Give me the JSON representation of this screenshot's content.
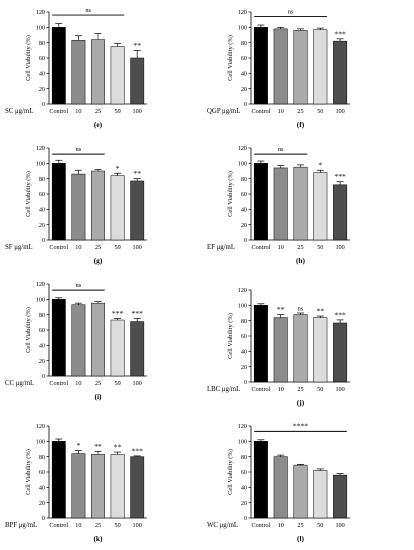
{
  "figure": {
    "colors": {
      "Control": "#000000",
      "10": "#8c8c8c",
      "25": "#ababab",
      "50": "#dcdcdc",
      "100": "#4e4e4e"
    }
  },
  "chart_data": [
    {
      "type": "bar",
      "panel": "(e)",
      "condition": "SC μg/mL",
      "ylabel": "Cell Viability (%)",
      "ylim": [
        0,
        120
      ],
      "yticks": [
        0,
        20,
        40,
        60,
        80,
        100,
        120
      ],
      "categories": [
        "Control",
        "10",
        "25",
        "50",
        "100"
      ],
      "values": [
        100,
        83,
        84,
        75,
        60
      ],
      "errors": [
        5,
        6,
        8,
        4,
        10
      ],
      "significance": [
        "",
        "",
        "",
        "",
        "**"
      ],
      "bracket": {
        "label": "ns",
        "from": 0,
        "to": 3,
        "y": 116
      }
    },
    {
      "type": "bar",
      "panel": "(f)",
      "condition": "QGP μg/mL",
      "ylabel": "Cell Viability (%)",
      "ylim": [
        0,
        120
      ],
      "yticks": [
        0,
        20,
        40,
        60,
        80,
        100,
        120
      ],
      "categories": [
        "Control",
        "10",
        "25",
        "50",
        "100"
      ],
      "values": [
        100,
        98,
        96,
        97,
        82
      ],
      "errors": [
        3,
        2,
        2,
        2,
        3
      ],
      "significance": [
        "",
        "",
        "",
        "",
        "***"
      ],
      "bracket": {
        "label": "ns",
        "from": 0,
        "to": 3,
        "y": 114
      }
    },
    {
      "type": "bar",
      "panel": "(g)",
      "condition": "SF μg/mL",
      "ylabel": "Cell Viability (%)",
      "ylim": [
        0,
        120
      ],
      "yticks": [
        0,
        20,
        40,
        60,
        80,
        100,
        120
      ],
      "categories": [
        "Control",
        "10",
        "25",
        "50",
        "100"
      ],
      "values": [
        100,
        86,
        90,
        84,
        77
      ],
      "errors": [
        4,
        5,
        2,
        3,
        3
      ],
      "significance": [
        "",
        "",
        "",
        "*",
        "**"
      ],
      "bracket": {
        "label": "ns",
        "from": 0,
        "to": 2,
        "y": 112
      }
    },
    {
      "type": "bar",
      "panel": "(h)",
      "condition": "EF μg/mL",
      "ylabel": "Cell Viability (%)",
      "ylim": [
        0,
        120
      ],
      "yticks": [
        0,
        20,
        40,
        60,
        80,
        100,
        120
      ],
      "categories": [
        "Control",
        "10",
        "25",
        "50",
        "100"
      ],
      "values": [
        100,
        94,
        95,
        88,
        72
      ],
      "errors": [
        3,
        3,
        3,
        3,
        4
      ],
      "significance": [
        "",
        "",
        "",
        "*",
        "***"
      ],
      "bracket": {
        "label": "ns",
        "from": 0,
        "to": 2,
        "y": 112
      }
    },
    {
      "type": "bar",
      "panel": "(i)",
      "condition": "CC μg/mL",
      "ylabel": "Cell Viability (%)",
      "ylim": [
        0,
        120
      ],
      "yticks": [
        0,
        20,
        40,
        60,
        80,
        100,
        120
      ],
      "categories": [
        "Control",
        "10",
        "25",
        "50",
        "100"
      ],
      "values": [
        100,
        93,
        95,
        73,
        71
      ],
      "errors": [
        2,
        2,
        2,
        2,
        4
      ],
      "significance": [
        "",
        "",
        "",
        "***",
        "***"
      ],
      "bracket": {
        "label": "ns",
        "from": 0,
        "to": 2,
        "y": 112
      }
    },
    {
      "type": "bar",
      "panel": "(j)",
      "condition": "LBC μg/mL",
      "ylabel": "Cell Viability (%)",
      "ylim": [
        0,
        120
      ],
      "yticks": [
        0,
        20,
        40,
        60,
        80,
        100,
        120
      ],
      "categories": [
        "Control",
        "10",
        "25",
        "50",
        "100"
      ],
      "values": [
        100,
        84,
        88,
        84,
        77
      ],
      "errors": [
        2,
        4,
        2,
        2,
        4
      ],
      "significance": [
        "",
        "**",
        "ns",
        "**",
        "***"
      ]
    },
    {
      "type": "bar",
      "panel": "(k)",
      "condition": "BPF μg/mL",
      "ylabel": "Cell Viability (%)",
      "ylim": [
        0,
        120
      ],
      "yticks": [
        0,
        20,
        40,
        60,
        80,
        100,
        120
      ],
      "categories": [
        "Control",
        "10",
        "25",
        "50",
        "100"
      ],
      "values": [
        100,
        84,
        83,
        83,
        80
      ],
      "errors": [
        3,
        4,
        4,
        3,
        1
      ],
      "significance": [
        "",
        "*",
        "**",
        "**",
        "***"
      ]
    },
    {
      "type": "bar",
      "panel": "(l)",
      "condition": "WC μg/mL",
      "ylabel": "Cell Viability (%)",
      "ylim": [
        0,
        120
      ],
      "yticks": [
        0,
        20,
        40,
        60,
        80,
        100,
        120
      ],
      "categories": [
        "Control",
        "10",
        "25",
        "50",
        "100"
      ],
      "values": [
        100,
        80,
        69,
        62,
        56
      ],
      "errors": [
        2,
        2,
        1,
        2,
        2
      ],
      "significance": [
        "",
        "",
        "",
        "",
        ""
      ],
      "bracket": {
        "label": "****",
        "from": 0,
        "to": 4,
        "y": 113
      }
    }
  ]
}
